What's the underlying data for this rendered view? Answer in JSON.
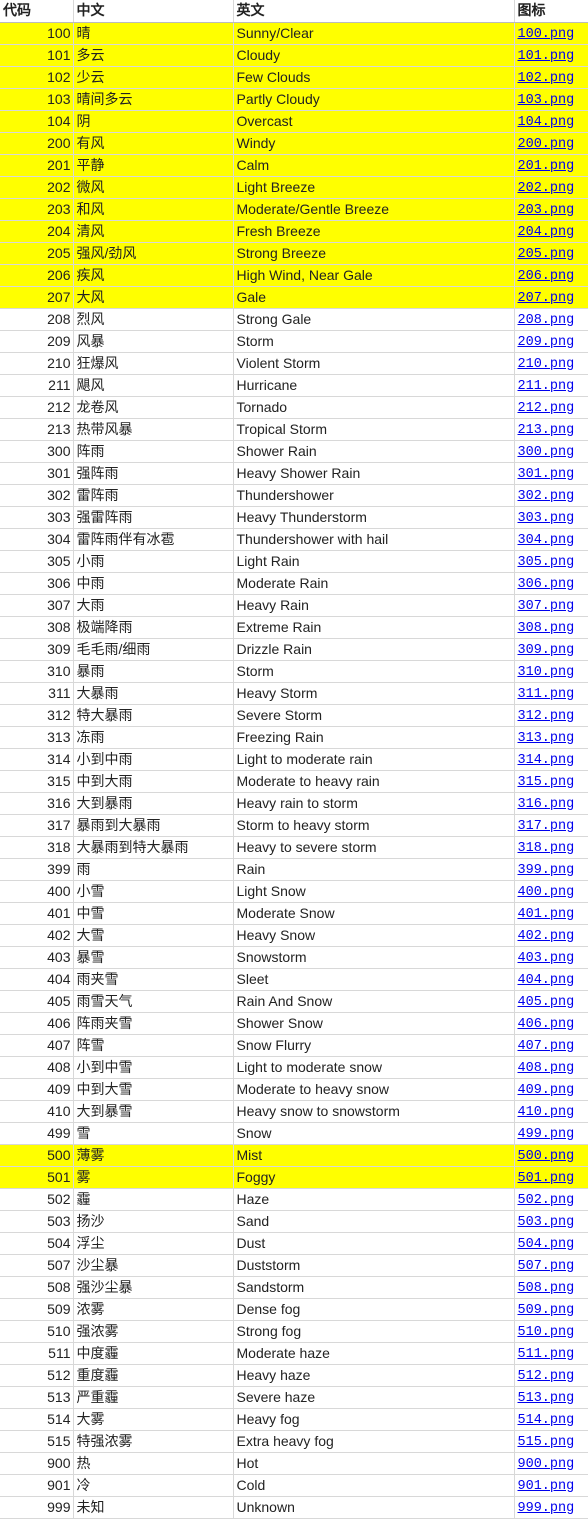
{
  "headers": {
    "code": "代码",
    "zh": "中文",
    "en": "英文",
    "icon": "图标"
  },
  "colors": {
    "highlight": "#ffff00",
    "link": "#0000ee"
  },
  "rows": [
    {
      "code": "100",
      "zh": "晴",
      "en": "Sunny/Clear",
      "icon": "100.png",
      "highlight": true
    },
    {
      "code": "101",
      "zh": "多云",
      "en": "Cloudy",
      "icon": "101.png",
      "highlight": true
    },
    {
      "code": "102",
      "zh": "少云",
      "en": "Few Clouds",
      "icon": "102.png",
      "highlight": true
    },
    {
      "code": "103",
      "zh": "晴间多云",
      "en": "Partly Cloudy",
      "icon": "103.png",
      "highlight": true
    },
    {
      "code": "104",
      "zh": "阴",
      "en": "Overcast",
      "icon": "104.png",
      "highlight": true
    },
    {
      "code": "200",
      "zh": "有风",
      "en": "Windy",
      "icon": "200.png",
      "highlight": true
    },
    {
      "code": "201",
      "zh": "平静",
      "en": "Calm",
      "icon": "201.png",
      "highlight": true
    },
    {
      "code": "202",
      "zh": "微风",
      "en": "Light Breeze",
      "icon": "202.png",
      "highlight": true
    },
    {
      "code": "203",
      "zh": "和风",
      "en": "Moderate/Gentle Breeze",
      "icon": "203.png",
      "highlight": true
    },
    {
      "code": "204",
      "zh": "清风",
      "en": "Fresh Breeze",
      "icon": "204.png",
      "highlight": true
    },
    {
      "code": "205",
      "zh": "强风/劲风",
      "en": "Strong Breeze",
      "icon": "205.png",
      "highlight": true
    },
    {
      "code": "206",
      "zh": "疾风",
      "en": "High Wind, Near Gale",
      "icon": "206.png",
      "highlight": true
    },
    {
      "code": "207",
      "zh": "大风",
      "en": "Gale",
      "icon": "207.png",
      "highlight": true
    },
    {
      "code": "208",
      "zh": "烈风",
      "en": "Strong Gale",
      "icon": "208.png",
      "highlight": false
    },
    {
      "code": "209",
      "zh": "风暴",
      "en": "Storm",
      "icon": "209.png",
      "highlight": false
    },
    {
      "code": "210",
      "zh": "狂爆风",
      "en": "Violent Storm",
      "icon": "210.png",
      "highlight": false
    },
    {
      "code": "211",
      "zh": "飓风",
      "en": "Hurricane",
      "icon": "211.png",
      "highlight": false
    },
    {
      "code": "212",
      "zh": "龙卷风",
      "en": "Tornado",
      "icon": "212.png",
      "highlight": false
    },
    {
      "code": "213",
      "zh": "热带风暴",
      "en": "Tropical Storm",
      "icon": "213.png",
      "highlight": false
    },
    {
      "code": "300",
      "zh": "阵雨",
      "en": "Shower Rain",
      "icon": "300.png",
      "highlight": false
    },
    {
      "code": "301",
      "zh": "强阵雨",
      "en": "Heavy Shower Rain",
      "icon": "301.png",
      "highlight": false
    },
    {
      "code": "302",
      "zh": "雷阵雨",
      "en": "Thundershower",
      "icon": "302.png",
      "highlight": false
    },
    {
      "code": "303",
      "zh": "强雷阵雨",
      "en": "Heavy Thunderstorm",
      "icon": "303.png",
      "highlight": false
    },
    {
      "code": "304",
      "zh": "雷阵雨伴有冰雹",
      "en": "Thundershower with hail",
      "icon": "304.png",
      "highlight": false
    },
    {
      "code": "305",
      "zh": "小雨",
      "en": "Light Rain",
      "icon": "305.png",
      "highlight": false
    },
    {
      "code": "306",
      "zh": "中雨",
      "en": "Moderate Rain",
      "icon": "306.png",
      "highlight": false
    },
    {
      "code": "307",
      "zh": "大雨",
      "en": "Heavy Rain",
      "icon": "307.png",
      "highlight": false
    },
    {
      "code": "308",
      "zh": "极端降雨",
      "en": "Extreme Rain",
      "icon": "308.png",
      "highlight": false
    },
    {
      "code": "309",
      "zh": "毛毛雨/细雨",
      "en": "Drizzle Rain",
      "icon": "309.png",
      "highlight": false
    },
    {
      "code": "310",
      "zh": "暴雨",
      "en": "Storm",
      "icon": "310.png",
      "highlight": false
    },
    {
      "code": "311",
      "zh": "大暴雨",
      "en": "Heavy Storm",
      "icon": "311.png",
      "highlight": false
    },
    {
      "code": "312",
      "zh": "特大暴雨",
      "en": "Severe Storm",
      "icon": "312.png",
      "highlight": false
    },
    {
      "code": "313",
      "zh": "冻雨",
      "en": "Freezing Rain",
      "icon": "313.png",
      "highlight": false
    },
    {
      "code": "314",
      "zh": "小到中雨",
      "en": "Light to moderate rain",
      "icon": "314.png",
      "highlight": false
    },
    {
      "code": "315",
      "zh": "中到大雨",
      "en": "Moderate to heavy rain",
      "icon": "315.png",
      "highlight": false
    },
    {
      "code": "316",
      "zh": "大到暴雨",
      "en": "Heavy rain to storm",
      "icon": "316.png",
      "highlight": false
    },
    {
      "code": "317",
      "zh": "暴雨到大暴雨",
      "en": "Storm to heavy storm",
      "icon": "317.png",
      "highlight": false
    },
    {
      "code": "318",
      "zh": "大暴雨到特大暴雨",
      "en": "Heavy to severe storm",
      "icon": "318.png",
      "highlight": false
    },
    {
      "code": "399",
      "zh": "雨",
      "en": "Rain",
      "icon": "399.png",
      "highlight": false
    },
    {
      "code": "400",
      "zh": "小雪",
      "en": "Light Snow",
      "icon": "400.png",
      "highlight": false
    },
    {
      "code": "401",
      "zh": "中雪",
      "en": "Moderate Snow",
      "icon": "401.png",
      "highlight": false
    },
    {
      "code": "402",
      "zh": "大雪",
      "en": "Heavy Snow",
      "icon": "402.png",
      "highlight": false
    },
    {
      "code": "403",
      "zh": "暴雪",
      "en": "Snowstorm",
      "icon": "403.png",
      "highlight": false
    },
    {
      "code": "404",
      "zh": "雨夹雪",
      "en": "Sleet",
      "icon": "404.png",
      "highlight": false
    },
    {
      "code": "405",
      "zh": "雨雪天气",
      "en": "Rain And Snow",
      "icon": "405.png",
      "highlight": false
    },
    {
      "code": "406",
      "zh": "阵雨夹雪",
      "en": "Shower Snow",
      "icon": "406.png",
      "highlight": false
    },
    {
      "code": "407",
      "zh": "阵雪",
      "en": "Snow Flurry",
      "icon": "407.png",
      "highlight": false
    },
    {
      "code": "408",
      "zh": "小到中雪",
      "en": "Light to moderate snow",
      "icon": "408.png",
      "highlight": false
    },
    {
      "code": "409",
      "zh": "中到大雪",
      "en": "Moderate to heavy snow",
      "icon": "409.png",
      "highlight": false
    },
    {
      "code": "410",
      "zh": "大到暴雪",
      "en": "Heavy snow to snowstorm",
      "icon": "410.png",
      "highlight": false
    },
    {
      "code": "499",
      "zh": "雪",
      "en": "Snow",
      "icon": "499.png",
      "highlight": false
    },
    {
      "code": "500",
      "zh": "薄雾",
      "en": "Mist",
      "icon": "500.png",
      "highlight": true
    },
    {
      "code": "501",
      "zh": "雾",
      "en": "Foggy",
      "icon": "501.png",
      "highlight": true
    },
    {
      "code": "502",
      "zh": "霾",
      "en": "Haze",
      "icon": "502.png",
      "highlight": false
    },
    {
      "code": "503",
      "zh": "扬沙",
      "en": "Sand",
      "icon": "503.png",
      "highlight": false
    },
    {
      "code": "504",
      "zh": "浮尘",
      "en": "Dust",
      "icon": "504.png",
      "highlight": false
    },
    {
      "code": "507",
      "zh": "沙尘暴",
      "en": "Duststorm",
      "icon": "507.png",
      "highlight": false
    },
    {
      "code": "508",
      "zh": "强沙尘暴",
      "en": "Sandstorm",
      "icon": "508.png",
      "highlight": false
    },
    {
      "code": "509",
      "zh": "浓雾",
      "en": "Dense fog",
      "icon": "509.png",
      "highlight": false
    },
    {
      "code": "510",
      "zh": "强浓雾",
      "en": "Strong fog",
      "icon": "510.png",
      "highlight": false
    },
    {
      "code": "511",
      "zh": "中度霾",
      "en": "Moderate haze",
      "icon": "511.png",
      "highlight": false
    },
    {
      "code": "512",
      "zh": "重度霾",
      "en": "Heavy haze",
      "icon": "512.png",
      "highlight": false
    },
    {
      "code": "513",
      "zh": "严重霾",
      "en": "Severe haze",
      "icon": "513.png",
      "highlight": false
    },
    {
      "code": "514",
      "zh": "大雾",
      "en": "Heavy fog",
      "icon": "514.png",
      "highlight": false
    },
    {
      "code": "515",
      "zh": "特强浓雾",
      "en": "Extra heavy fog",
      "icon": "515.png",
      "highlight": false
    },
    {
      "code": "900",
      "zh": "热",
      "en": "Hot",
      "icon": "900.png",
      "highlight": false
    },
    {
      "code": "901",
      "zh": "冷",
      "en": "Cold",
      "icon": "901.png",
      "highlight": false
    },
    {
      "code": "999",
      "zh": "未知",
      "en": "Unknown",
      "icon": "999.png",
      "highlight": false
    }
  ]
}
